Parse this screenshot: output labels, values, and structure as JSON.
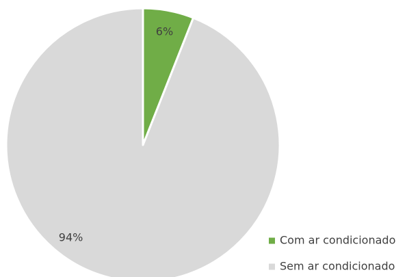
{
  "chart_data": {
    "type": "pie",
    "categories": [
      "Com ar condicionado",
      "Sem ar condicionado"
    ],
    "values": [
      6,
      94
    ],
    "data_labels": [
      "6%",
      "94%"
    ],
    "colors": [
      "#70ad47",
      "#d9d9d9"
    ],
    "slice_border_color": "#ffffff",
    "start_angle_deg": 0,
    "direction": "clockwise",
    "legend": {
      "position": "bottom-right",
      "entries": [
        "Com ar condicionado",
        "Sem ar condicionado"
      ]
    }
  }
}
